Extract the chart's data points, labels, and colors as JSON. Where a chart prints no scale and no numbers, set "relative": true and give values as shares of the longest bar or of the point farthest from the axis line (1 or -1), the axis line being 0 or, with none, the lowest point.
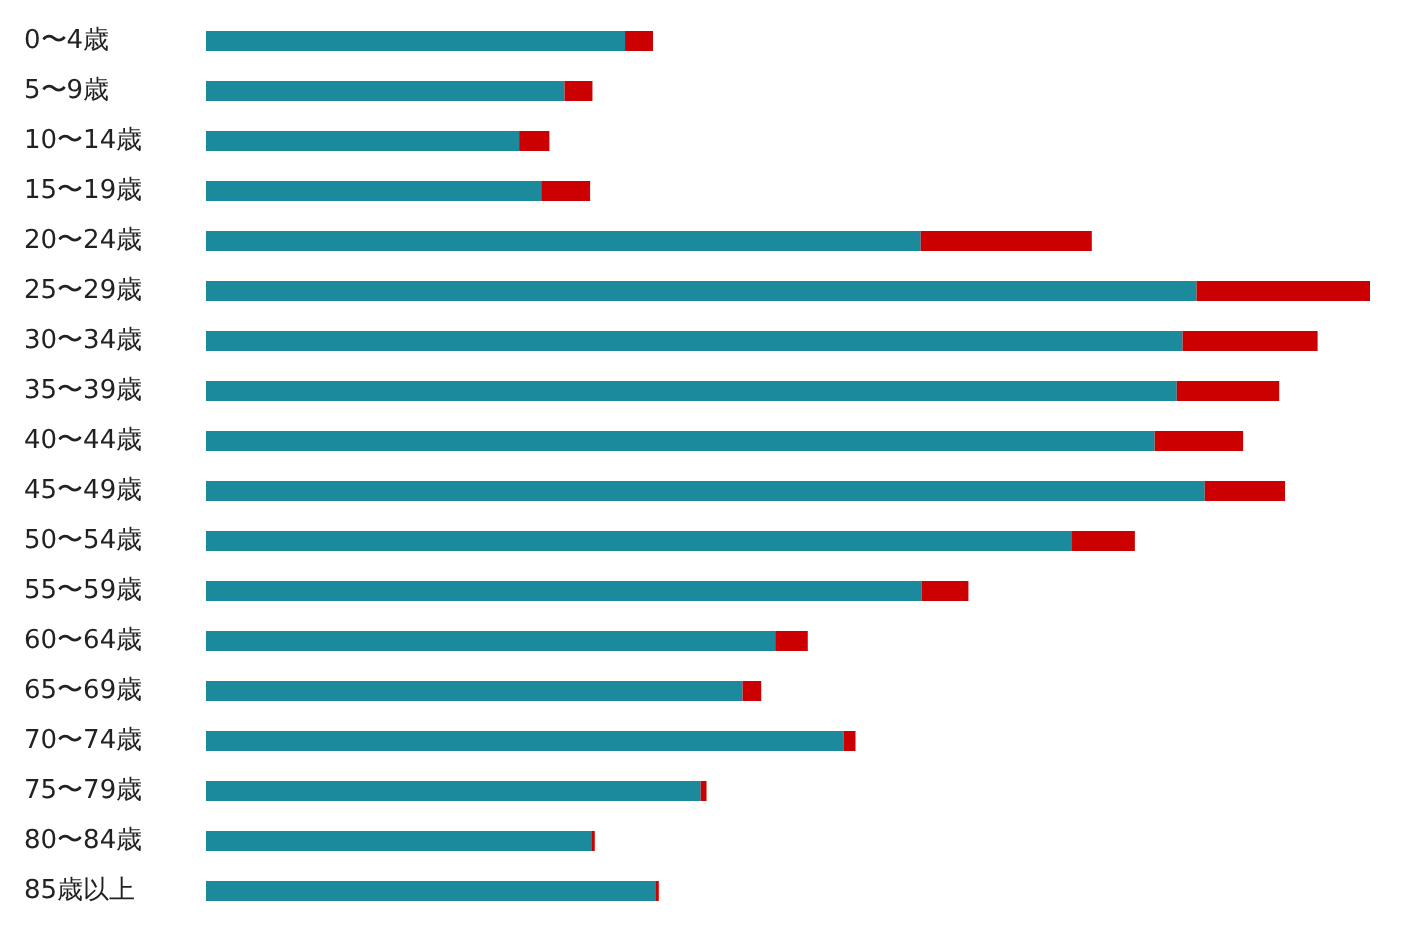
{
  "chart_data": {
    "type": "bar",
    "orientation": "horizontal",
    "stacked": true,
    "relative": true,
    "categories": [
      "0〜4歳",
      "5〜9歳",
      "10〜14歳",
      "15〜19歳",
      "20〜24歳",
      "25〜29歳",
      "30〜34歳",
      "35〜39歳",
      "40〜44歳",
      "45〜49歳",
      "50〜54歳",
      "55〜59歳",
      "60〜64歳",
      "65〜69歳",
      "70〜74歳",
      "75〜79歳",
      "80〜84歳",
      "85歳以上"
    ],
    "series": [
      {
        "color": "#1b8a9c",
        "values": [
          0.36,
          0.308,
          0.269,
          0.288,
          0.614,
          0.851,
          0.839,
          0.834,
          0.815,
          0.858,
          0.744,
          0.615,
          0.489,
          0.461,
          0.548,
          0.425,
          0.331,
          0.386
        ]
      },
      {
        "color": "#cc0000",
        "values": [
          0.024,
          0.024,
          0.026,
          0.042,
          0.147,
          0.149,
          0.116,
          0.088,
          0.076,
          0.069,
          0.054,
          0.04,
          0.028,
          0.016,
          0.01,
          0.005,
          0.003,
          0.003
        ]
      }
    ]
  }
}
